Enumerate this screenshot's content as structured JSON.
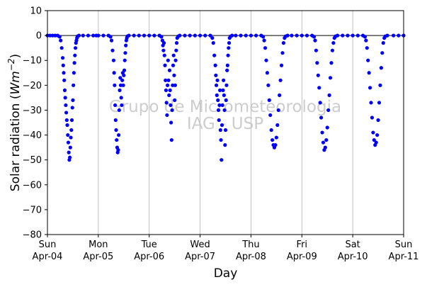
{
  "chart_data": {
    "type": "scatter",
    "title": "",
    "xlabel": "Day",
    "ylabel": "Solar radiation (Wm⁻²)",
    "ylim": [
      -80,
      10
    ],
    "yticks": [
      10,
      0,
      -10,
      -20,
      -30,
      -40,
      -50,
      -60,
      -70,
      -80
    ],
    "xlim": [
      0,
      7
    ],
    "xtick_labels": [
      {
        "day": "Sun",
        "date": "Apr-04"
      },
      {
        "day": "Mon",
        "date": "Apr-05"
      },
      {
        "day": "Tue",
        "date": "Apr-06"
      },
      {
        "day": "Wed",
        "date": "Apr-07"
      },
      {
        "day": "Thu",
        "date": "Apr-08"
      },
      {
        "day": "Fri",
        "date": "Apr-09"
      },
      {
        "day": "Sat",
        "date": "Apr-10"
      },
      {
        "day": "Sun",
        "date": "Apr-11"
      }
    ],
    "vertical_grid": true,
    "reference_line_y": 0,
    "marker_color": "#0000ff",
    "watermark": [
      "Grupo de Micrometeorologia",
      "IAG - USP"
    ],
    "series": [
      {
        "name": "",
        "points": [
          [
            0.0,
            0
          ],
          [
            0.05,
            0
          ],
          [
            0.1,
            0
          ],
          [
            0.15,
            0
          ],
          [
            0.2,
            0
          ],
          [
            0.24,
            -0.5
          ],
          [
            0.26,
            -2
          ],
          [
            0.28,
            -5
          ],
          [
            0.3,
            -9
          ],
          [
            0.31,
            -12
          ],
          [
            0.32,
            -15
          ],
          [
            0.33,
            -18
          ],
          [
            0.34,
            -22
          ],
          [
            0.35,
            -25
          ],
          [
            0.36,
            -28
          ],
          [
            0.37,
            -31
          ],
          [
            0.38,
            -34
          ],
          [
            0.39,
            -36
          ],
          [
            0.4,
            -40
          ],
          [
            0.41,
            -43
          ],
          [
            0.42,
            -47
          ],
          [
            0.43,
            -50
          ],
          [
            0.44,
            -49
          ],
          [
            0.45,
            -45
          ],
          [
            0.46,
            -41
          ],
          [
            0.47,
            -38
          ],
          [
            0.48,
            -34
          ],
          [
            0.49,
            -29
          ],
          [
            0.5,
            -26
          ],
          [
            0.51,
            -20
          ],
          [
            0.52,
            -15
          ],
          [
            0.53,
            -11
          ],
          [
            0.54,
            -8
          ],
          [
            0.55,
            -5
          ],
          [
            0.56,
            -3
          ],
          [
            0.57,
            -2
          ],
          [
            0.58,
            -1
          ],
          [
            0.59,
            -0.3
          ],
          [
            0.62,
            0
          ],
          [
            0.7,
            0
          ],
          [
            0.8,
            0
          ],
          [
            0.9,
            0
          ],
          [
            0.96,
            0
          ],
          [
            1.0,
            0
          ],
          [
            1.1,
            0
          ],
          [
            1.2,
            0
          ],
          [
            1.24,
            -0.5
          ],
          [
            1.26,
            -2
          ],
          [
            1.28,
            -6
          ],
          [
            1.3,
            -10
          ],
          [
            1.31,
            -15
          ],
          [
            1.32,
            -20
          ],
          [
            1.33,
            -28
          ],
          [
            1.34,
            -34
          ],
          [
            1.35,
            -38
          ],
          [
            1.36,
            -42
          ],
          [
            1.37,
            -45
          ],
          [
            1.38,
            -47
          ],
          [
            1.39,
            -46
          ],
          [
            1.4,
            -40
          ],
          [
            1.41,
            -30
          ],
          [
            1.42,
            -22
          ],
          [
            1.43,
            -17
          ],
          [
            1.44,
            -20
          ],
          [
            1.45,
            -25
          ],
          [
            1.46,
            -28
          ],
          [
            1.47,
            -18
          ],
          [
            1.48,
            -15
          ],
          [
            1.49,
            -20
          ],
          [
            1.5,
            -16
          ],
          [
            1.51,
            -14
          ],
          [
            1.52,
            -10
          ],
          [
            1.53,
            -7
          ],
          [
            1.54,
            -4
          ],
          [
            1.55,
            -2
          ],
          [
            1.56,
            -1
          ],
          [
            1.57,
            -0.3
          ],
          [
            1.6,
            0
          ],
          [
            1.7,
            0
          ],
          [
            1.8,
            0
          ],
          [
            1.9,
            0
          ],
          [
            2.0,
            0
          ],
          [
            2.1,
            0
          ],
          [
            2.2,
            0
          ],
          [
            2.24,
            -0.5
          ],
          [
            2.26,
            -2
          ],
          [
            2.27,
            -4
          ],
          [
            2.28,
            -6
          ],
          [
            2.29,
            -3
          ],
          [
            2.3,
            -8
          ],
          [
            2.31,
            -12
          ],
          [
            2.32,
            -18
          ],
          [
            2.33,
            -22
          ],
          [
            2.34,
            -27
          ],
          [
            2.35,
            -32
          ],
          [
            2.36,
            -20
          ],
          [
            2.37,
            -10
          ],
          [
            2.38,
            -18
          ],
          [
            2.39,
            -24
          ],
          [
            2.4,
            -14
          ],
          [
            2.41,
            -22
          ],
          [
            2.42,
            -28
          ],
          [
            2.43,
            -35
          ],
          [
            2.44,
            -42
          ],
          [
            2.45,
            -30
          ],
          [
            2.46,
            -20
          ],
          [
            2.47,
            -12
          ],
          [
            2.48,
            -8
          ],
          [
            2.49,
            -16
          ],
          [
            2.5,
            -26
          ],
          [
            2.51,
            -20
          ],
          [
            2.52,
            -10
          ],
          [
            2.53,
            -6
          ],
          [
            2.54,
            -3
          ],
          [
            2.55,
            -1
          ],
          [
            2.57,
            -0.3
          ],
          [
            2.6,
            0
          ],
          [
            2.7,
            0
          ],
          [
            2.8,
            0
          ],
          [
            2.9,
            0
          ],
          [
            3.0,
            0
          ],
          [
            3.1,
            0
          ],
          [
            3.2,
            0
          ],
          [
            3.24,
            -1
          ],
          [
            3.26,
            -3
          ],
          [
            3.28,
            -8
          ],
          [
            3.3,
            -12
          ],
          [
            3.31,
            -16
          ],
          [
            3.32,
            -20
          ],
          [
            3.33,
            -24
          ],
          [
            3.34,
            -18
          ],
          [
            3.35,
            -26
          ],
          [
            3.36,
            -30
          ],
          [
            3.37,
            -34
          ],
          [
            3.38,
            -28
          ],
          [
            3.39,
            -22
          ],
          [
            3.4,
            -38
          ],
          [
            3.41,
            -42
          ],
          [
            3.42,
            -50
          ],
          [
            3.43,
            -36
          ],
          [
            3.44,
            -28
          ],
          [
            3.45,
            -22
          ],
          [
            3.46,
            -18
          ],
          [
            3.47,
            -24
          ],
          [
            3.48,
            -30
          ],
          [
            3.49,
            -44
          ],
          [
            3.5,
            -38
          ],
          [
            3.51,
            -26
          ],
          [
            3.52,
            -20
          ],
          [
            3.53,
            -14
          ],
          [
            3.54,
            -12
          ],
          [
            3.55,
            -8
          ],
          [
            3.56,
            -5
          ],
          [
            3.57,
            -3
          ],
          [
            3.58,
            -1
          ],
          [
            3.6,
            -0.3
          ],
          [
            3.63,
            0
          ],
          [
            3.7,
            0
          ],
          [
            3.8,
            0
          ],
          [
            3.9,
            0
          ],
          [
            4.0,
            0
          ],
          [
            4.1,
            0
          ],
          [
            4.2,
            0
          ],
          [
            4.24,
            -0.5
          ],
          [
            4.26,
            -2
          ],
          [
            4.28,
            -5
          ],
          [
            4.3,
            -10
          ],
          [
            4.32,
            -15
          ],
          [
            4.34,
            -20
          ],
          [
            4.36,
            -26
          ],
          [
            4.38,
            -32
          ],
          [
            4.4,
            -38
          ],
          [
            4.42,
            -42
          ],
          [
            4.44,
            -44
          ],
          [
            4.46,
            -45
          ],
          [
            4.48,
            -44
          ],
          [
            4.5,
            -41
          ],
          [
            4.52,
            -36
          ],
          [
            4.54,
            -30
          ],
          [
            4.56,
            -24
          ],
          [
            4.58,
            -18
          ],
          [
            4.6,
            -12
          ],
          [
            4.62,
            -7
          ],
          [
            4.64,
            -3
          ],
          [
            4.66,
            -1
          ],
          [
            4.68,
            -0.3
          ],
          [
            4.72,
            0
          ],
          [
            4.8,
            0
          ],
          [
            4.9,
            0
          ],
          [
            5.0,
            0
          ],
          [
            5.1,
            0
          ],
          [
            5.2,
            0
          ],
          [
            5.24,
            -0.5
          ],
          [
            5.26,
            -2
          ],
          [
            5.28,
            -6
          ],
          [
            5.3,
            -11
          ],
          [
            5.32,
            -16
          ],
          [
            5.34,
            -21
          ],
          [
            5.36,
            -27
          ],
          [
            5.38,
            -33
          ],
          [
            5.4,
            -39
          ],
          [
            5.42,
            -43
          ],
          [
            5.44,
            -46
          ],
          [
            5.46,
            -45
          ],
          [
            5.48,
            -42
          ],
          [
            5.5,
            -37
          ],
          [
            5.52,
            -30
          ],
          [
            5.54,
            -24
          ],
          [
            5.56,
            -17
          ],
          [
            5.58,
            -11
          ],
          [
            5.6,
            -6
          ],
          [
            5.62,
            -3
          ],
          [
            5.64,
            -1
          ],
          [
            5.66,
            -0.3
          ],
          [
            5.7,
            0
          ],
          [
            5.8,
            0
          ],
          [
            5.9,
            0
          ],
          [
            6.0,
            0
          ],
          [
            6.1,
            0
          ],
          [
            6.2,
            0
          ],
          [
            6.24,
            -0.5
          ],
          [
            6.26,
            -2
          ],
          [
            6.28,
            -5
          ],
          [
            6.3,
            -10
          ],
          [
            6.32,
            -15
          ],
          [
            6.34,
            -21
          ],
          [
            6.36,
            -27
          ],
          [
            6.38,
            -33
          ],
          [
            6.4,
            -39
          ],
          [
            6.42,
            -42
          ],
          [
            6.44,
            -44
          ],
          [
            6.46,
            -43
          ],
          [
            6.48,
            -40
          ],
          [
            6.5,
            -34
          ],
          [
            6.52,
            -27
          ],
          [
            6.54,
            -20
          ],
          [
            6.56,
            -13
          ],
          [
            6.58,
            -7
          ],
          [
            6.6,
            -3
          ],
          [
            6.62,
            -1
          ],
          [
            6.64,
            -0.3
          ],
          [
            6.68,
            0
          ],
          [
            6.8,
            0
          ],
          [
            6.9,
            0
          ],
          [
            7.0,
            0
          ]
        ]
      }
    ]
  }
}
